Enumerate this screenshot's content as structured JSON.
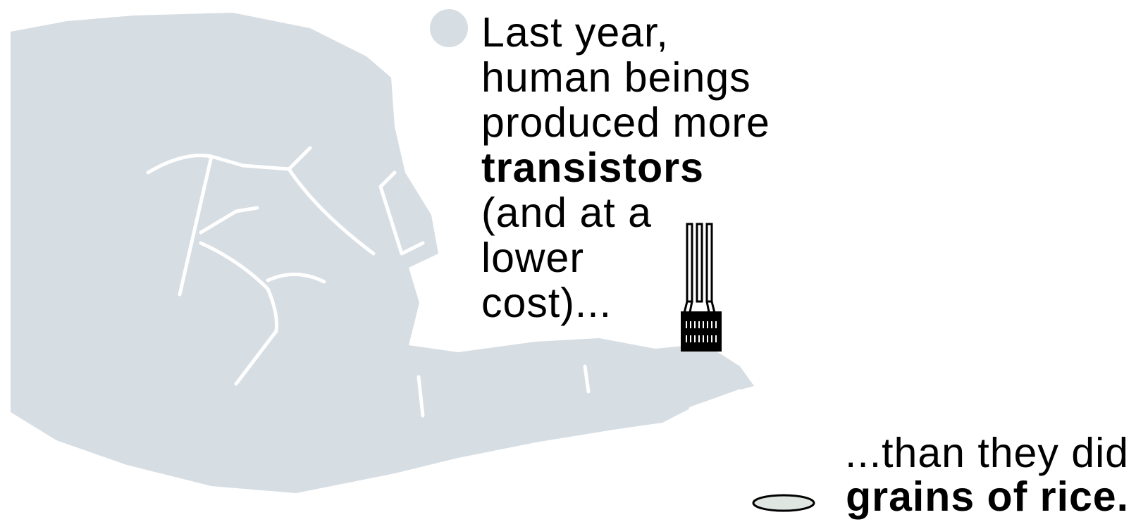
{
  "text": {
    "line1": "Last year,",
    "line2": "human beings",
    "line3": "produced more",
    "line4_bold": "transistors",
    "line5": "(and at a",
    "line6": "lower",
    "line7": "cost)...",
    "bottom_line1": "...than they did",
    "bottom_line2_bold": "grains of rice."
  },
  "colors": {
    "hand": "#d6dde3",
    "hand_lines": "#ffffff",
    "bullet": "#d6dde3",
    "ink": "#000000"
  },
  "icons": [
    "hand-illustration",
    "bullet-dot",
    "transistor-icon",
    "rice-grain-icon"
  ]
}
